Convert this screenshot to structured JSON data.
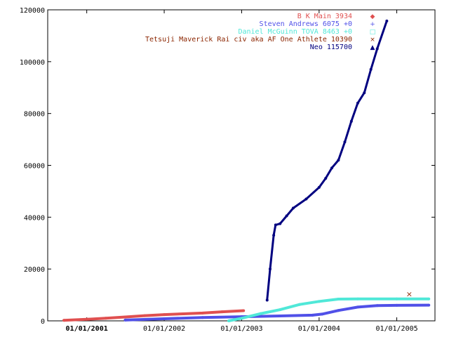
{
  "chart_data": {
    "type": "line",
    "x_axis": {
      "kind": "date",
      "range": [
        "2000-07-01",
        "2005-06-30"
      ],
      "ticks": [
        {
          "date": "2001-01-01",
          "label": "01/01/2001",
          "bold": true
        },
        {
          "date": "2002-01-01",
          "label": "01/01/2002",
          "bold": false
        },
        {
          "date": "2003-01-01",
          "label": "01/01/2003",
          "bold": false
        },
        {
          "date": "2004-01-01",
          "label": "01/01/2004",
          "bold": false
        },
        {
          "date": "2005-01-01",
          "label": "01/01/2005",
          "bold": false
        }
      ]
    },
    "y_axis": {
      "range": [
        0,
        120000
      ],
      "ticks": [
        {
          "value": 0,
          "label": "0"
        },
        {
          "value": 20000,
          "label": "20000"
        },
        {
          "value": 40000,
          "label": "40000"
        },
        {
          "value": 60000,
          "label": "60000"
        },
        {
          "value": 80000,
          "label": "80000"
        },
        {
          "value": 100000,
          "label": "100000"
        },
        {
          "value": 120000,
          "label": "120000"
        }
      ]
    },
    "grid": false,
    "legend_placement": "top-right",
    "series": [
      {
        "name": "B  K  Main 3934",
        "color": "#e05050",
        "marker": "◆",
        "points": [
          [
            "2000-09-15",
            200
          ],
          [
            "2001-01-01",
            600
          ],
          [
            "2001-04-01",
            1000
          ],
          [
            "2001-07-01",
            1500
          ],
          [
            "2001-10-01",
            2000
          ],
          [
            "2002-01-01",
            2400
          ],
          [
            "2002-04-01",
            2700
          ],
          [
            "2002-07-01",
            3000
          ],
          [
            "2002-10-01",
            3500
          ],
          [
            "2003-01-10",
            3934
          ]
        ]
      },
      {
        "name": "Steven Andrews 6075 +0",
        "color": "#5050e8",
        "marker": "+",
        "points": [
          [
            "2001-07-01",
            300
          ],
          [
            "2002-01-01",
            800
          ],
          [
            "2002-07-01",
            1300
          ],
          [
            "2003-01-01",
            1600
          ],
          [
            "2003-07-01",
            1900
          ],
          [
            "2003-12-01",
            2200
          ],
          [
            "2004-01-15",
            2600
          ],
          [
            "2004-04-01",
            4000
          ],
          [
            "2004-07-01",
            5300
          ],
          [
            "2004-10-01",
            5900
          ],
          [
            "2005-01-01",
            6000
          ],
          [
            "2005-06-01",
            6075
          ]
        ]
      },
      {
        "name": "Daniel McGuinn  TOVA 8463 +0",
        "color": "#50e8d8",
        "marker": "□",
        "points": [
          [
            "2002-11-01",
            0
          ],
          [
            "2003-01-01",
            1000
          ],
          [
            "2003-04-01",
            2800
          ],
          [
            "2003-07-01",
            4300
          ],
          [
            "2003-10-01",
            6300
          ],
          [
            "2004-01-01",
            7500
          ],
          [
            "2004-04-01",
            8400
          ],
          [
            "2004-07-01",
            8450
          ],
          [
            "2005-01-01",
            8460
          ],
          [
            "2005-06-01",
            8463
          ]
        ]
      },
      {
        "name": "Tetsuji   Maverick   Rai civ   aka AF One  Athlete  10390",
        "color": "#8b2500",
        "marker": "×",
        "points": [
          [
            "2005-03-01",
            10390
          ]
        ]
      },
      {
        "name": "Neo 115700",
        "color": "#000080",
        "marker": "▲",
        "points": [
          [
            "2003-05-01",
            8000
          ],
          [
            "2003-05-15",
            20000
          ],
          [
            "2003-06-01",
            33000
          ],
          [
            "2003-06-10",
            37000
          ],
          [
            "2003-07-01",
            37500
          ],
          [
            "2003-08-01",
            40500
          ],
          [
            "2003-09-01",
            43500
          ],
          [
            "2003-11-01",
            47000
          ],
          [
            "2004-01-01",
            51500
          ],
          [
            "2004-02-01",
            55000
          ],
          [
            "2004-03-01",
            59000
          ],
          [
            "2004-04-01",
            62000
          ],
          [
            "2004-05-01",
            69000
          ],
          [
            "2004-06-01",
            77000
          ],
          [
            "2004-07-01",
            84000
          ],
          [
            "2004-08-01",
            88000
          ],
          [
            "2004-09-01",
            97000
          ],
          [
            "2004-10-01",
            105000
          ],
          [
            "2004-11-15",
            115700
          ]
        ]
      }
    ]
  }
}
